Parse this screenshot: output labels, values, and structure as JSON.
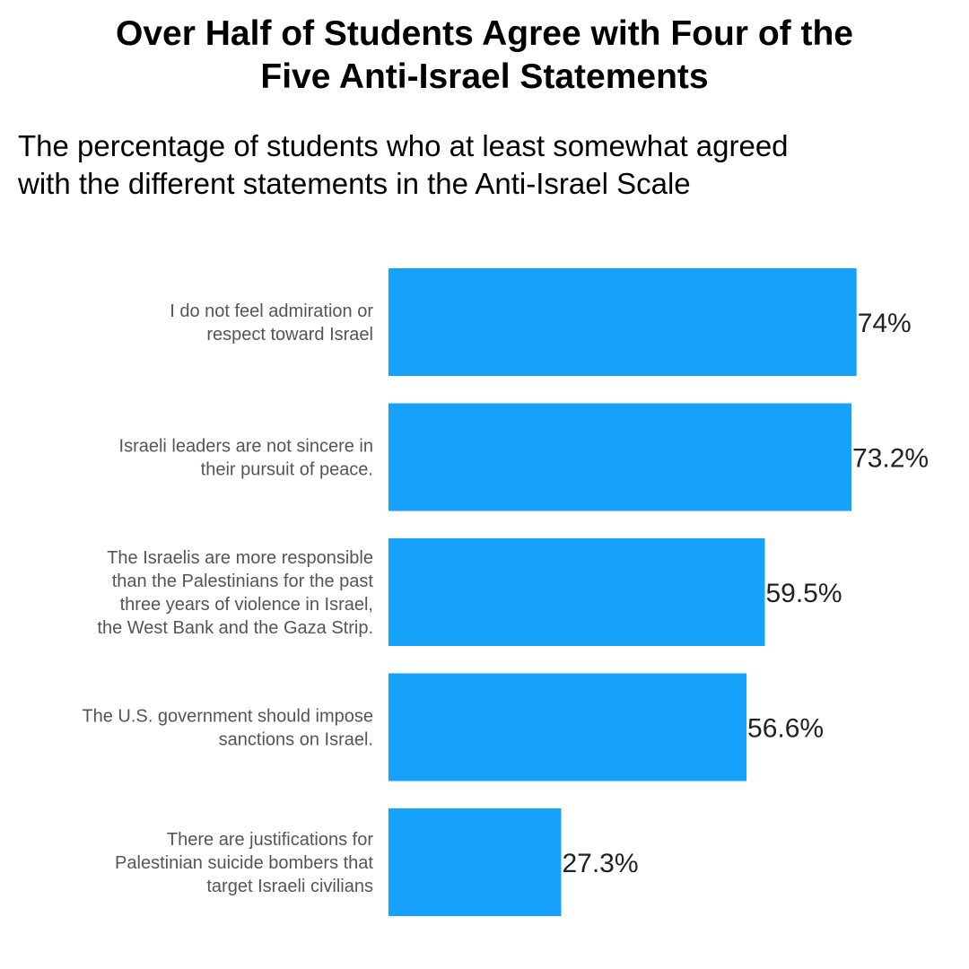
{
  "chart_data": {
    "type": "bar",
    "orientation": "horizontal",
    "title": "Over Half of Students Agree with Four of the Five Anti-Israel Statements",
    "title_lines": [
      "Over Half of Students Agree with Four of the",
      "Five Anti-Israel Statements"
    ],
    "subtitle": "The percentage of students who at least somewhat agreed with the different statements in the Anti-Israel Scale",
    "subtitle_lines": [
      "The percentage of students who at least somewhat agreed",
      "with the different statements in the Anti-Israel Scale"
    ],
    "categories": [
      [
        "I do not feel admiration or",
        "respect toward Israel"
      ],
      [
        "Israeli leaders are not sincere in",
        "their pursuit of peace."
      ],
      [
        "The Israelis are more responsible",
        "than the Palestinians for the past",
        "three years of violence in Israel,",
        "the West Bank and the Gaza Strip."
      ],
      [
        "The U.S. government should impose",
        "sanctions on Israel."
      ],
      [
        "There are justifications for",
        "Palestinian suicide bombers that",
        "target Israeli civilians"
      ]
    ],
    "values": [
      74,
      73.2,
      59.5,
      56.6,
      27.3
    ],
    "value_labels": [
      "74%",
      "73.2%",
      "59.5%",
      "56.6%",
      "27.3%"
    ],
    "xlim": [
      0,
      100
    ],
    "grid": false,
    "legend": "none",
    "bar_color": "#16a2fb"
  }
}
